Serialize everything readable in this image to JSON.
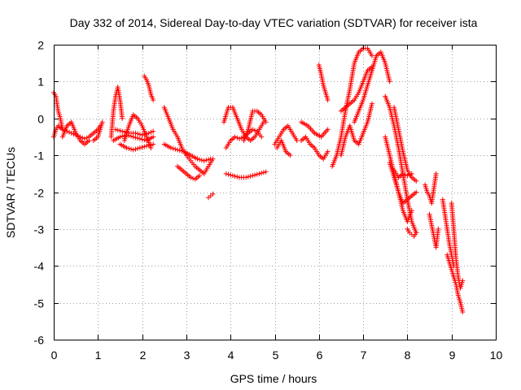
{
  "chart_data": {
    "type": "scatter",
    "title": "Day 332 of 2014, Sidereal Day-to-day VTEC variation (SDTVAR) for receiver ista",
    "xlabel": "GPS time / hours",
    "ylabel": "SDTVAR / TECUs",
    "xlim": [
      0,
      10
    ],
    "ylim": [
      -6,
      2
    ],
    "xticks": [
      0,
      1,
      2,
      3,
      4,
      5,
      6,
      7,
      8,
      9,
      10
    ],
    "yticks": [
      -6,
      -5,
      -4,
      -3,
      -2,
      -1,
      0,
      1,
      2
    ],
    "grid": true,
    "marker": "+",
    "color": "#ff0000",
    "series": [
      {
        "name": "SDTVAR",
        "segments": [
          {
            "x": [
              0.0,
              0.05,
              0.1,
              0.15,
              0.2
            ],
            "y": [
              0.7,
              0.6,
              0.2,
              0.0,
              -0.3
            ]
          },
          {
            "x": [
              0.0,
              0.05,
              0.1,
              0.2,
              0.3,
              0.4,
              0.5,
              0.6,
              0.7,
              0.8,
              0.9,
              1.0,
              1.05
            ],
            "y": [
              -0.5,
              -0.3,
              -0.2,
              -0.3,
              -0.35,
              -0.4,
              -0.45,
              -0.5,
              -0.55,
              -0.5,
              -0.4,
              -0.3,
              -0.2
            ]
          },
          {
            "x": [
              0.2,
              0.3,
              0.4,
              0.5,
              0.6,
              0.7,
              0.8
            ],
            "y": [
              -0.5,
              -0.2,
              -0.1,
              -0.4,
              -0.6,
              -0.7,
              -0.6
            ]
          },
          {
            "x": [
              0.9,
              1.0,
              1.05,
              1.1
            ],
            "y": [
              -0.6,
              -0.5,
              -0.3,
              -0.1
            ]
          },
          {
            "x": [
              1.3,
              1.35,
              1.4,
              1.45,
              1.5,
              1.55
            ],
            "y": [
              -0.5,
              0.2,
              0.6,
              0.85,
              0.5,
              0.0
            ]
          },
          {
            "x": [
              1.35,
              1.5,
              1.65,
              1.8,
              1.95,
              2.1,
              2.25
            ],
            "y": [
              -0.6,
              -0.5,
              -0.45,
              -0.5,
              -0.55,
              -0.6,
              -0.5
            ]
          },
          {
            "x": [
              1.4,
              1.55,
              1.7,
              1.85,
              2.0,
              2.15,
              2.25
            ],
            "y": [
              -0.3,
              -0.35,
              -0.4,
              -0.4,
              -0.45,
              -0.4,
              -0.35
            ]
          },
          {
            "x": [
              1.5,
              1.65,
              1.8,
              1.95,
              2.1,
              2.25
            ],
            "y": [
              -0.7,
              -0.8,
              -0.85,
              -0.8,
              -0.75,
              -0.7
            ]
          },
          {
            "x": [
              1.6,
              1.7,
              1.8,
              1.9,
              2.0,
              2.1,
              2.2
            ],
            "y": [
              -0.6,
              -0.2,
              0.1,
              0.0,
              -0.2,
              -0.5,
              -0.8
            ]
          },
          {
            "x": [
              2.05,
              2.1,
              2.15,
              2.2,
              2.25
            ],
            "y": [
              1.15,
              1.05,
              0.9,
              0.65,
              0.5
            ]
          },
          {
            "x": [
              2.5,
              2.6,
              2.7,
              2.8,
              2.9,
              3.0,
              3.1,
              3.2,
              3.3,
              3.4,
              3.5,
              3.6
            ],
            "y": [
              0.3,
              0.0,
              -0.3,
              -0.5,
              -0.8,
              -1.0,
              -1.15,
              -1.3,
              -1.4,
              -1.5,
              -1.3,
              -1.1
            ]
          },
          {
            "x": [
              2.5,
              2.65,
              2.8,
              2.95,
              3.1,
              3.25,
              3.4,
              3.55
            ],
            "y": [
              -0.7,
              -0.8,
              -0.85,
              -0.9,
              -1.0,
              -1.1,
              -1.15,
              -1.1
            ]
          },
          {
            "x": [
              2.8,
              2.9,
              3.0,
              3.1,
              3.2,
              3.3
            ],
            "y": [
              -1.3,
              -1.4,
              -1.5,
              -1.6,
              -1.65,
              -1.55
            ]
          },
          {
            "x": [
              3.5,
              3.55,
              3.6
            ],
            "y": [
              -2.15,
              -2.1,
              -2.05
            ]
          },
          {
            "x": [
              3.85,
              3.95,
              4.05,
              4.15,
              4.25,
              4.35,
              4.45,
              4.55,
              4.65,
              4.75
            ],
            "y": [
              -0.1,
              0.3,
              0.3,
              0.0,
              -0.3,
              -0.5,
              -0.6,
              -0.5,
              -0.3,
              -0.1
            ]
          },
          {
            "x": [
              3.9,
              4.0,
              4.1,
              4.2,
              4.3,
              4.4,
              4.5,
              4.6,
              4.7
            ],
            "y": [
              -0.8,
              -0.6,
              -0.5,
              -0.55,
              -0.5,
              -0.4,
              -0.3,
              -0.35,
              -0.5
            ]
          },
          {
            "x": [
              4.3,
              4.4,
              4.5,
              4.6,
              4.7,
              4.8
            ],
            "y": [
              -0.6,
              -0.3,
              0.2,
              0.2,
              0.1,
              -0.1
            ]
          },
          {
            "x": [
              3.9,
              4.05,
              4.2,
              4.35,
              4.5,
              4.65,
              4.8
            ],
            "y": [
              -1.5,
              -1.55,
              -1.6,
              -1.6,
              -1.55,
              -1.5,
              -1.45
            ]
          },
          {
            "x": [
              5.0,
              5.1,
              5.2,
              5.3,
              5.4,
              5.5
            ],
            "y": [
              -0.7,
              -0.5,
              -0.3,
              -0.2,
              -0.4,
              -0.6
            ]
          },
          {
            "x": [
              5.05,
              5.15,
              5.25,
              5.35
            ],
            "y": [
              -0.8,
              -0.6,
              -0.9,
              -1.0
            ]
          },
          {
            "x": [
              5.6,
              5.7,
              5.8,
              5.9,
              6.0,
              6.1,
              6.2
            ],
            "y": [
              -0.6,
              -0.5,
              -0.7,
              -0.8,
              -1.0,
              -1.1,
              -0.9
            ]
          },
          {
            "x": [
              5.6,
              5.75,
              5.9,
              6.05,
              6.2
            ],
            "y": [
              -0.1,
              -0.2,
              -0.4,
              -0.5,
              -0.3
            ]
          },
          {
            "x": [
              6.0,
              6.05,
              6.1,
              6.15,
              6.2
            ],
            "y": [
              1.45,
              1.2,
              0.9,
              0.7,
              0.5
            ]
          },
          {
            "x": [
              6.3,
              6.4,
              6.5,
              6.6,
              6.7,
              6.8,
              6.9,
              7.0,
              7.1,
              7.2
            ],
            "y": [
              -1.3,
              -1.0,
              -0.5,
              0.2,
              0.8,
              1.5,
              1.8,
              1.9,
              1.9,
              1.7
            ]
          },
          {
            "x": [
              6.5,
              6.6,
              6.7,
              6.8,
              6.9,
              7.0,
              7.1,
              7.2
            ],
            "y": [
              0.2,
              0.3,
              0.4,
              0.5,
              0.7,
              1.0,
              1.3,
              1.4
            ]
          },
          {
            "x": [
              6.5,
              6.6,
              6.7,
              6.8,
              6.9,
              7.0,
              7.1,
              7.2
            ],
            "y": [
              -1.0,
              -0.5,
              -0.2,
              -0.6,
              -0.7,
              -0.4,
              -0.1,
              0.4
            ]
          },
          {
            "x": [
              6.8,
              6.9,
              7.0,
              7.1,
              7.2,
              7.3,
              7.4,
              7.5,
              7.6
            ],
            "y": [
              -0.1,
              0.2,
              0.5,
              0.9,
              1.3,
              1.7,
              1.8,
              1.5,
              1.0
            ]
          },
          {
            "x": [
              7.5,
              7.6,
              7.7,
              7.8,
              7.9,
              8.0,
              8.1,
              8.2
            ],
            "y": [
              0.6,
              0.3,
              -0.2,
              -0.8,
              -1.5,
              -2.2,
              -2.8,
              -3.1
            ]
          },
          {
            "x": [
              7.5,
              7.6,
              7.7,
              7.8,
              7.9,
              8.0,
              8.1
            ],
            "y": [
              -0.5,
              -1.0,
              -1.5,
              -2.0,
              -2.5,
              -2.8,
              -2.5
            ]
          },
          {
            "x": [
              7.6,
              7.7,
              7.8,
              7.9,
              8.0,
              8.1,
              8.2
            ],
            "y": [
              -1.2,
              -1.6,
              -2.0,
              -2.3,
              -2.2,
              -2.1,
              -2.0
            ]
          },
          {
            "x": [
              7.7,
              7.8,
              7.9,
              8.0,
              8.1,
              8.2
            ],
            "y": [
              0.3,
              -0.3,
              -0.9,
              -1.4,
              -1.6,
              -1.7
            ]
          },
          {
            "x": [
              7.7,
              7.8,
              7.9,
              8.0,
              8.1
            ],
            "y": [
              -1.4,
              -1.6,
              -1.5,
              -1.55,
              -1.5
            ]
          },
          {
            "x": [
              8.0,
              8.05,
              8.1,
              8.15,
              8.2
            ],
            "y": [
              -3.0,
              -3.1,
              -3.15,
              -3.2,
              -3.1
            ]
          },
          {
            "x": [
              8.4,
              8.45,
              8.5,
              8.55,
              8.6,
              8.65
            ],
            "y": [
              -1.8,
              -2.0,
              -2.1,
              -2.3,
              -1.9,
              -1.5
            ]
          },
          {
            "x": [
              8.5,
              8.55,
              8.6,
              8.65,
              8.7
            ],
            "y": [
              -2.6,
              -2.9,
              -3.2,
              -3.5,
              -3.0
            ]
          },
          {
            "x": [
              8.8,
              8.85,
              8.9,
              8.95,
              9.0,
              9.05
            ],
            "y": [
              -2.2,
              -2.6,
              -3.0,
              -3.4,
              -3.7,
              -4.0
            ]
          },
          {
            "x": [
              8.9,
              8.95,
              9.0,
              9.05,
              9.1,
              9.15,
              9.2,
              9.25
            ],
            "y": [
              -3.7,
              -3.9,
              -4.1,
              -4.3,
              -4.5,
              -4.8,
              -5.0,
              -5.25
            ]
          },
          {
            "x": [
              9.0,
              9.05,
              9.1,
              9.15,
              9.2,
              9.25
            ],
            "y": [
              -2.3,
              -3.0,
              -3.8,
              -4.3,
              -4.6,
              -4.4
            ]
          }
        ]
      }
    ]
  }
}
